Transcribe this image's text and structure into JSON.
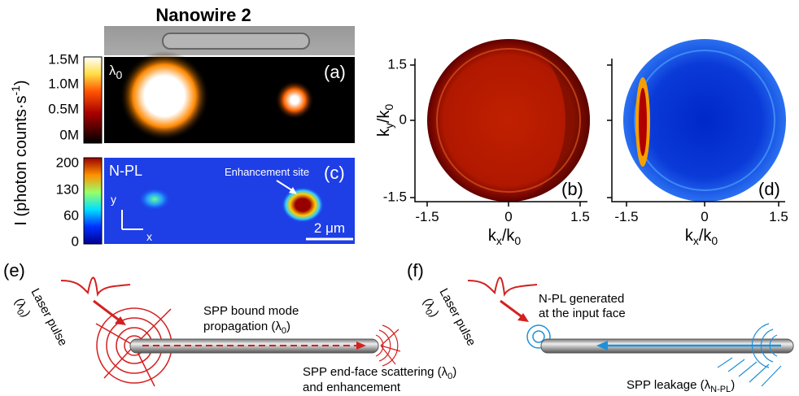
{
  "title": "Nanowire 2",
  "colorbar_axis": {
    "text": "I (photon counts·s",
    "sup": "-1",
    "after": ")"
  },
  "panel_a": {
    "label": "(a)",
    "lambda": {
      "base": "λ",
      "sub": "0"
    },
    "colorbar_ticks": [
      "1.5M",
      "1.0M",
      "0.5M",
      "0M"
    ]
  },
  "panel_c": {
    "label": "(c)",
    "tag": "N-PL",
    "annotation": "Enhancement site",
    "y_arrow": "y",
    "x_arrow": "x",
    "scale_bar": "2 μm",
    "colorbar_ticks": [
      "200",
      "130",
      "60",
      "0"
    ]
  },
  "panel_b": {
    "label": "(b)",
    "y_axis": {
      "base": "k",
      "sub": "y",
      "mid": "/k",
      "sub2": "0"
    },
    "x_axis": {
      "base": "k",
      "sub": "x",
      "mid": "/k",
      "sub2": "0"
    },
    "y_ticks": [
      "1.5",
      "0",
      "-1.5"
    ],
    "x_ticks": [
      "-1.5",
      "0",
      "1.5"
    ]
  },
  "panel_d": {
    "label": "(d)",
    "x_axis": {
      "base": "k",
      "sub": "x",
      "mid": "/k",
      "sub2": "0"
    },
    "x_ticks": [
      "-1.5",
      "0",
      "1.5"
    ]
  },
  "panel_e": {
    "label": "(e)",
    "laser": "Laser pulse",
    "laser_lambda": {
      "text": "(λ",
      "sub": "0",
      "after": ")"
    },
    "bound_1": "SPP bound mode",
    "bound_2": {
      "text": "propagation (λ",
      "sub": "0",
      "after": ")"
    },
    "scatter_1": {
      "text": "SPP end-face scattering (λ",
      "sub": "0",
      "after": ")"
    },
    "scatter_2": "and enhancement"
  },
  "panel_f": {
    "label": "(f)",
    "laser": "Laser pulse",
    "laser_lambda": {
      "text": "(λ",
      "sub": "0",
      "after": ")"
    },
    "npl_1": "N-PL generated",
    "npl_2": "at the input face",
    "leak": {
      "text": "SPP leakage (λ",
      "sub": "N-PL",
      "after": ")"
    }
  }
}
